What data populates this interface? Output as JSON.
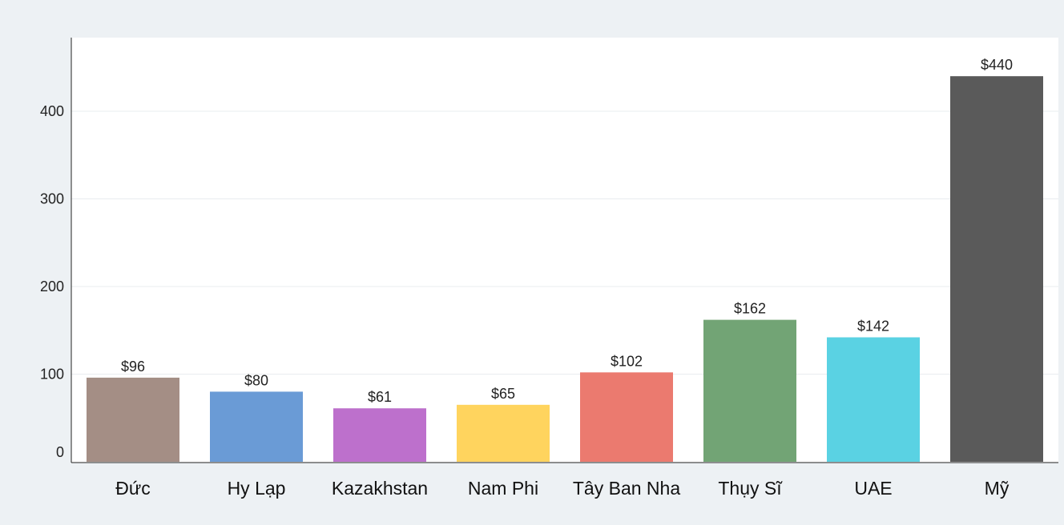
{
  "chart_data": {
    "type": "bar",
    "title": "",
    "xlabel": "",
    "ylabel": "",
    "categories": [
      "Đức",
      "Hy Lạp",
      "Kazakhstan",
      "Nam Phi",
      "Tây Ban Nha",
      "Thụy Sĩ",
      "UAE",
      "Mỹ"
    ],
    "values": [
      96,
      80,
      61,
      65,
      102,
      162,
      142,
      440
    ],
    "value_labels": [
      "$96",
      "$80",
      "$61",
      "$65",
      "$102",
      "$162",
      "$142",
      "$440"
    ],
    "bar_colors": [
      "#a48e85",
      "#6a9bd6",
      "#bd70cc",
      "#ffd45e",
      "#eb7a6f",
      "#72a475",
      "#5ad2e3",
      "#5a5a5a"
    ],
    "y_ticks": [
      0,
      100,
      200,
      300,
      400
    ],
    "y_tick_labels": [
      "0",
      "100",
      "200",
      "300",
      "400"
    ],
    "ylim": [
      0,
      485
    ],
    "grid": true,
    "legend": "none"
  },
  "colors": {
    "page_background": "#edf1f4",
    "plot_background": "#ffffff",
    "gridline": "#e9ecef",
    "axis": "#222222",
    "text": "#222222"
  }
}
